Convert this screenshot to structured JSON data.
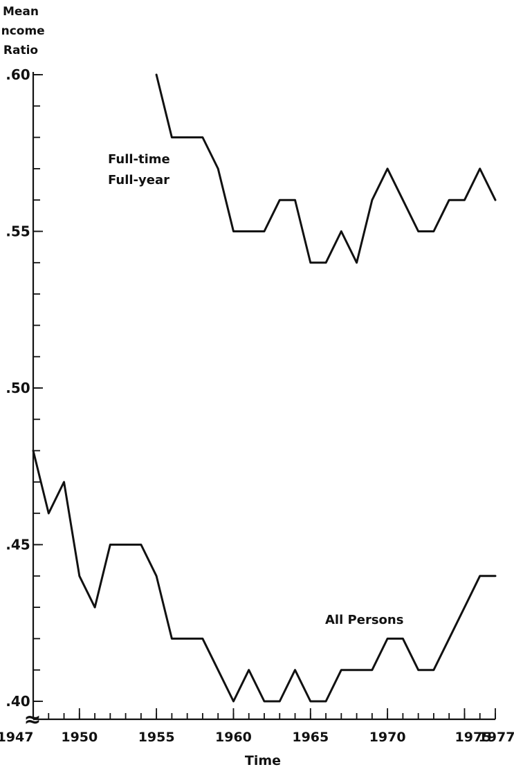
{
  "chart_data": {
    "type": "line",
    "title": "",
    "ylabel_lines": [
      "Mean",
      "Income",
      "Ratio"
    ],
    "xlabel": "Time",
    "xlim": [
      1947,
      1977
    ],
    "ylim": [
      0.39,
      0.6
    ],
    "y_break_marker": "≈",
    "y_ticks": [
      {
        "value": 0.6,
        "label": ".60"
      },
      {
        "value": 0.55,
        "label": ".55"
      },
      {
        "value": 0.5,
        "label": ".50"
      },
      {
        "value": 0.45,
        "label": ".45"
      },
      {
        "value": 0.4,
        "label": ".40"
      }
    ],
    "x_ticks": [
      {
        "value": 1947,
        "label": "1947"
      },
      {
        "value": 1950,
        "label": "1950"
      },
      {
        "value": 1955,
        "label": "1955"
      },
      {
        "value": 1960,
        "label": "1960"
      },
      {
        "value": 1965,
        "label": "1965"
      },
      {
        "value": 1970,
        "label": "1970"
      },
      {
        "value": 1975,
        "label": "1975"
      },
      {
        "value": 1977,
        "label": "1977"
      }
    ],
    "grid": false,
    "series": [
      {
        "name": "Full-time Full-year",
        "label_lines": [
          "Full-time",
          "Full-year"
        ],
        "x": [
          1955,
          1956,
          1957,
          1958,
          1959,
          1960,
          1961,
          1962,
          1963,
          1964,
          1965,
          1966,
          1967,
          1968,
          1969,
          1970,
          1971,
          1972,
          1973,
          1974,
          1975,
          1976,
          1977
        ],
        "y": [
          0.6,
          0.58,
          0.58,
          0.58,
          0.57,
          0.55,
          0.55,
          0.55,
          0.56,
          0.56,
          0.54,
          0.54,
          0.55,
          0.54,
          0.56,
          0.57,
          0.56,
          0.55,
          0.55,
          0.56,
          0.56,
          0.57,
          0.56
        ]
      },
      {
        "name": "All Persons",
        "label_lines": [
          "All Persons"
        ],
        "x": [
          1947,
          1948,
          1949,
          1950,
          1951,
          1952,
          1953,
          1954,
          1955,
          1956,
          1957,
          1958,
          1959,
          1960,
          1961,
          1962,
          1963,
          1964,
          1965,
          1966,
          1967,
          1968,
          1969,
          1970,
          1971,
          1972,
          1973,
          1974,
          1975,
          1976,
          1977
        ],
        "y": [
          0.48,
          0.46,
          0.47,
          0.44,
          0.43,
          0.45,
          0.45,
          0.45,
          0.44,
          0.42,
          0.42,
          0.42,
          0.41,
          0.4,
          0.41,
          0.4,
          0.4,
          0.41,
          0.4,
          0.4,
          0.41,
          0.41,
          0.41,
          0.42,
          0.42,
          0.41,
          0.41,
          0.42,
          0.43,
          0.44,
          0.44
        ]
      }
    ]
  }
}
